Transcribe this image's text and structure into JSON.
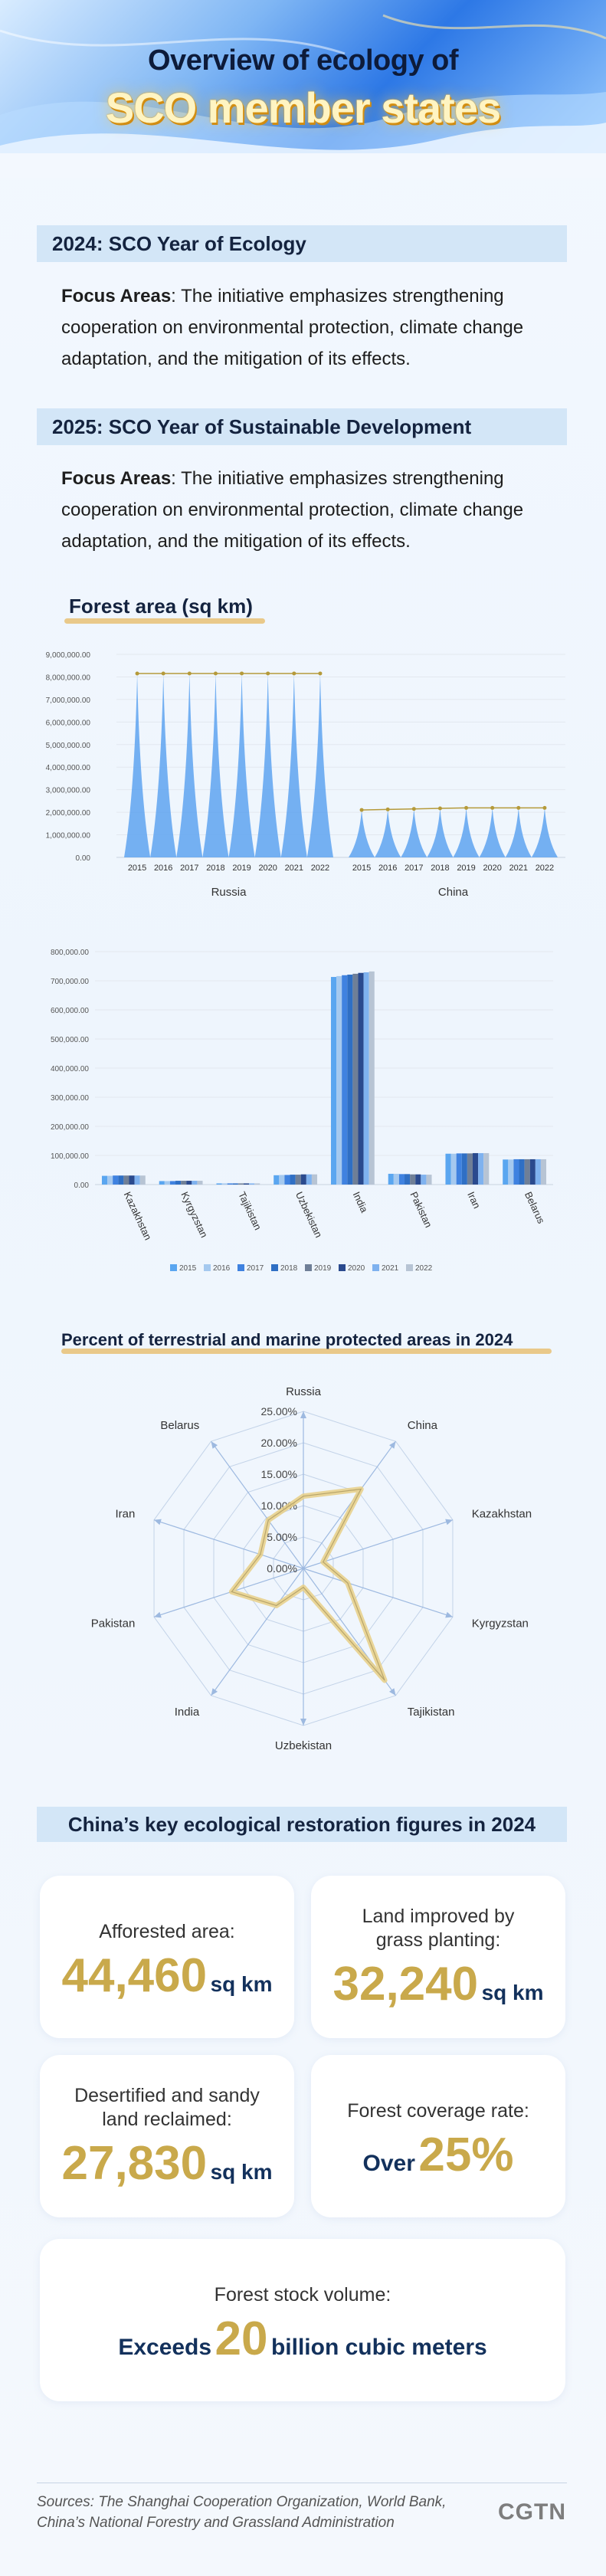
{
  "header": {
    "title_line1": "Overview of ecology of",
    "title_line2": "SCO member states"
  },
  "sections": [
    {
      "heading": "2024: SCO Year of Ecology",
      "label": "Focus Areas",
      "text": ": The initiative emphasizes strengthening cooperation on environmental protection, climate change adaptation, and the mitigation of its effects."
    },
    {
      "heading": "2025: SCO Year of Sustainable Development",
      "label": "Focus Areas",
      "text": ": The initiative emphasizes strengthening cooperation on environmental protection, climate change adaptation, and the mitigation of its effects."
    }
  ],
  "forest_title": "Forest area (sq km)",
  "chart_data": [
    {
      "type": "area",
      "title": "Forest area (sq km)",
      "years": [
        "2015",
        "2016",
        "2017",
        "2018",
        "2019",
        "2020",
        "2021",
        "2022"
      ],
      "groups": [
        {
          "name": "Russia",
          "values": [
            8149000,
            8150000,
            8151000,
            8152000,
            8153000,
            8153000,
            8153000,
            8153000
          ]
        },
        {
          "name": "China",
          "values": [
            2103000,
            2126000,
            2150000,
            2173000,
            2196000,
            2196000,
            2196000,
            2196000
          ]
        }
      ],
      "yticks": [
        "0.00",
        "1,000,000.00",
        "2,000,000.00",
        "3,000,000.00",
        "4,000,000.00",
        "5,000,000.00",
        "6,000,000.00",
        "7,000,000.00",
        "8,000,000.00",
        "9,000,000.00"
      ],
      "ylim": [
        0,
        9000000
      ]
    },
    {
      "type": "bar",
      "categories": [
        "Kazakhstan",
        "Kyrgyzstan",
        "Tajikistan",
        "Uzbekistan",
        "India",
        "Pakistan",
        "Iran",
        "Belarus"
      ],
      "series_names": [
        "2015",
        "2016",
        "2017",
        "2018",
        "2019",
        "2020",
        "2021",
        "2022"
      ],
      "values": [
        [
          30000,
          30000,
          31000,
          31000,
          31000,
          31000,
          31000,
          31000
        ],
        [
          12000,
          12000,
          12000,
          13000,
          13000,
          13000,
          13000,
          13000
        ],
        [
          4000,
          4000,
          4000,
          4000,
          4000,
          4000,
          4000,
          4000
        ],
        [
          32000,
          33000,
          33000,
          34000,
          34000,
          35000,
          35000,
          35000
        ],
        [
          713000,
          716000,
          719000,
          721000,
          724000,
          727000,
          729000,
          732000
        ],
        [
          37000,
          37000,
          36000,
          36000,
          35000,
          35000,
          34000,
          34000
        ],
        [
          106000,
          106000,
          107000,
          107000,
          107000,
          108000,
          108000,
          108000
        ],
        [
          86000,
          86000,
          87000,
          87000,
          87000,
          87000,
          87000,
          87000
        ]
      ],
      "yticks": [
        "0.00",
        "100,000.00",
        "200,000.00",
        "300,000.00",
        "400,000.00",
        "500,000.00",
        "600,000.00",
        "700,000.00",
        "800,000.00"
      ],
      "ylim": [
        0,
        800000
      ],
      "colors": [
        "#5aa6f0",
        "#a5c9ef",
        "#3f82e0",
        "#2f6fc4",
        "#6f7f97",
        "#2a4a8e",
        "#7fb2ef",
        "#b7c4d4"
      ]
    },
    {
      "type": "radar",
      "title": "Percent of terrestrial and marine protected areas in 2024",
      "axes": [
        "Russia",
        "China",
        "Kazakhstan",
        "Kyrgyzstan",
        "Tajikistan",
        "Uzbekistan",
        "India",
        "Pakistan",
        "Iran",
        "Belarus"
      ],
      "values": [
        11.5,
        15.6,
        3.3,
        7.4,
        22.0,
        3.0,
        7.3,
        12.0,
        7.2,
        9.5
      ],
      "ticks": [
        "0.00%",
        "5.00%",
        "10.00%",
        "15.00%",
        "20.00%",
        "25.00%"
      ],
      "rmax": 25
    }
  ],
  "restoration": {
    "heading": "China’s key ecological restoration figures in 2024",
    "cards": [
      {
        "label": "Afforested area:",
        "value": "44,460",
        "unit": "sq km"
      },
      {
        "label": "Land improved by grass planting:",
        "value": "32,240",
        "unit": "sq km"
      },
      {
        "label": "Desertified and sandy land reclaimed:",
        "value": "27,830",
        "unit": "sq km"
      },
      {
        "label": "Forest coverage rate:",
        "prefix": "Over",
        "value": "25%"
      },
      {
        "label": "Forest stock volume:",
        "prefix": "Exceeds",
        "value": "20",
        "unit": "billion cubic meters"
      }
    ]
  },
  "footer": {
    "sources": "Sources: The Shanghai Cooperation Organization, World Bank, China’s National Forestry and Grassland Administration",
    "logo": "CGTN"
  }
}
